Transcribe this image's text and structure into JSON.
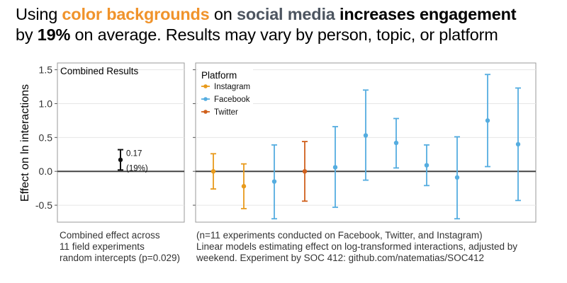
{
  "title": {
    "line1_a": "Using ",
    "line1_b": "color backgrounds",
    "line1_c": " on ",
    "line1_d": "social media",
    "line1_e": " ",
    "line1_f": "increases engagement",
    "line2_a": "by ",
    "line2_b": "19%",
    "line2_c": " on average. Results may vary by person, topic, or platform"
  },
  "colors": {
    "Instagram": "#e89a1c",
    "Facebook": "#55ade0",
    "Twitter": "#d0601c",
    "combined": "#111111"
  },
  "left_caption": [
    "Combined effect across",
    "11 field experiments",
    "random intercepts (p=0.029)"
  ],
  "right_caption": [
    "(n=11 experiments conducted on Facebook, Twitter, and Instagram)",
    "Linear models estimating effect on log-transformed interactions, adjusted by",
    "weekend. Experiment by SOC 412: github.com/natematias/SOC412"
  ],
  "chart_data": [
    {
      "type": "scatter",
      "panel_label": "Combined Results",
      "ylabel": "Effect on ln interactions",
      "ylim": [
        -0.75,
        1.6
      ],
      "yticks": [
        -0.5,
        0.0,
        0.5,
        1.0,
        1.5
      ],
      "ytick_labels": [
        "-0.5",
        "0.0",
        "0.5",
        "1.0",
        "1.5"
      ],
      "points": [
        {
          "estimate": 0.17,
          "low": 0.02,
          "high": 0.32,
          "label1": "0.17",
          "label2": "(19%)"
        }
      ]
    },
    {
      "type": "scatter",
      "legend": {
        "title": "Platform",
        "position": "top-left",
        "entries": [
          "Instagram",
          "Facebook",
          "Twitter"
        ]
      },
      "ylim": [
        -0.75,
        1.6
      ],
      "points": [
        {
          "platform": "Instagram",
          "estimate": 0.0,
          "low": -0.26,
          "high": 0.26
        },
        {
          "platform": "Instagram",
          "estimate": -0.22,
          "low": -0.55,
          "high": 0.11
        },
        {
          "platform": "Facebook",
          "estimate": -0.15,
          "low": -0.7,
          "high": 0.39
        },
        {
          "platform": "Twitter",
          "estimate": 0.0,
          "low": -0.44,
          "high": 0.44
        },
        {
          "platform": "Facebook",
          "estimate": 0.06,
          "low": -0.53,
          "high": 0.66
        },
        {
          "platform": "Facebook",
          "estimate": 0.53,
          "low": -0.13,
          "high": 1.2
        },
        {
          "platform": "Facebook",
          "estimate": 0.42,
          "low": 0.05,
          "high": 0.78
        },
        {
          "platform": "Facebook",
          "estimate": 0.09,
          "low": -0.21,
          "high": 0.39
        },
        {
          "platform": "Facebook",
          "estimate": -0.09,
          "low": -0.7,
          "high": 0.51
        },
        {
          "platform": "Facebook",
          "estimate": 0.75,
          "low": 0.07,
          "high": 1.43
        },
        {
          "platform": "Facebook",
          "estimate": 0.4,
          "low": -0.43,
          "high": 1.23
        }
      ]
    }
  ]
}
